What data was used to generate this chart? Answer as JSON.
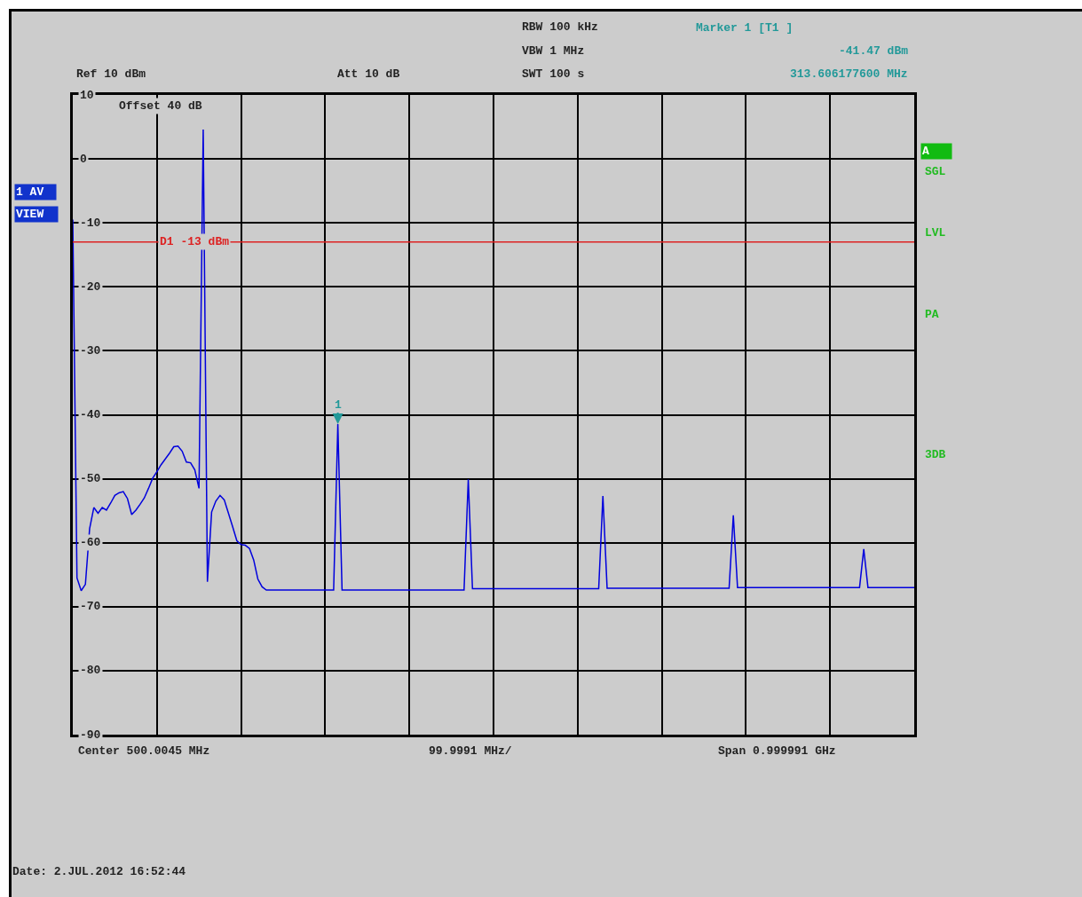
{
  "chart_data": {
    "type": "line",
    "categories": [
      null,
      null,
      null,
      null,
      null,
      null,
      null,
      null,
      null,
      null,
      null,
      null,
      null,
      null,
      null,
      null,
      null,
      null,
      null,
      null,
      null,
      null,
      null,
      null,
      null,
      null,
      null,
      null,
      null,
      null,
      null,
      null,
      null,
      null,
      null,
      null,
      null,
      null,
      null,
      null,
      null,
      null,
      null,
      null,
      null,
      null,
      null,
      null,
      null,
      null,
      null,
      null,
      null,
      null,
      null,
      null,
      null,
      null,
      null,
      null,
      null,
      null,
      null,
      null,
      null,
      null,
      null,
      null,
      null,
      null,
      null,
      null,
      null,
      null,
      null,
      null,
      null,
      null,
      null,
      null,
      null,
      null,
      null,
      null,
      null,
      null,
      null,
      null,
      null,
      null,
      null,
      null,
      null,
      null,
      null,
      null,
      null,
      null,
      null,
      null,
      null,
      null,
      null,
      null,
      null,
      null,
      null,
      null,
      null,
      null,
      null,
      null,
      null,
      null,
      null,
      null,
      null,
      null,
      null,
      null,
      null,
      null,
      null,
      null,
      null,
      null,
      null,
      null,
      null,
      null,
      null,
      null,
      null,
      null,
      null,
      null,
      null,
      null,
      null,
      null,
      null,
      null,
      null,
      null,
      null,
      null,
      null,
      null,
      null,
      null,
      null,
      null,
      null,
      null,
      null,
      null,
      null,
      null,
      null,
      null,
      null,
      null,
      null,
      null,
      null,
      null,
      null,
      null,
      null,
      null,
      null,
      null,
      null,
      null,
      null,
      null,
      null,
      null,
      null,
      null,
      null,
      null,
      null,
      null,
      null,
      null,
      null,
      null,
      null,
      null,
      null,
      null,
      null,
      null,
      null,
      null,
      null,
      null,
      null,
      null,
      null
    ],
    "series": [
      {
        "color": "#0000dd",
        "values": [
          -9.5,
          -65.5,
          -67.5,
          -66.5,
          -57.8,
          -54.5,
          -55.4,
          -54.5,
          -54.9,
          -53.8,
          -52.6,
          -52.2,
          -52,
          -53.1,
          -55.6,
          -54.9,
          -54,
          -53,
          -51.5,
          -49.9,
          -48.9,
          -47.8,
          -46.9,
          -46,
          -45,
          -44.9,
          -45.7,
          -47.4,
          -47.5,
          -48.6,
          -51.5,
          4.6,
          -66.1,
          -55.2,
          -53.5,
          -52.6,
          -53.3,
          -55.4,
          -57.5,
          -59.7,
          -60.3,
          -60.4,
          -60.9,
          -62.7,
          -65.7,
          -66.9,
          -67.4,
          -67.4,
          -67.4,
          -67.4,
          -67.4,
          -67.4,
          -67.4,
          -67.4,
          -67.4,
          -67.4,
          -67.4,
          -67.4,
          -67.4,
          -67.4,
          -67.4,
          -67.4,
          -67.4,
          -41.47,
          -67.4,
          -67.4,
          -67.4,
          -67.4,
          -67.4,
          -67.4,
          -67.4,
          -67.4,
          -67.4,
          -67.4,
          -67.4,
          -67.4,
          -67.4,
          -67.4,
          -67.4,
          -67.4,
          -67.4,
          -67.4,
          -67.4,
          -67.4,
          -67.4,
          -67.4,
          -67.4,
          -67.4,
          -67.4,
          -67.4,
          -67.4,
          -67.4,
          -67.4,
          -67.4,
          -50.1,
          -67.2,
          -67.2,
          -67.2,
          -67.2,
          -67.2,
          -67.2,
          -67.2,
          -67.2,
          -67.2,
          -67.2,
          -67.2,
          -67.2,
          -67.2,
          -67.2,
          -67.2,
          -67.2,
          -67.2,
          -67.2,
          -67.2,
          -67.2,
          -67.2,
          -67.2,
          -67.2,
          -67.2,
          -67.2,
          -67.2,
          -67.2,
          -67.2,
          -67.2,
          -67.2,
          -67.2,
          -52.7,
          -67.1,
          -67.1,
          -67.1,
          -67.1,
          -67.1,
          -67.1,
          -67.1,
          -67.1,
          -67.1,
          -67.1,
          -67.1,
          -67.1,
          -67.1,
          -67.1,
          -67.1,
          -67.1,
          -67.1,
          -67.1,
          -67.1,
          -67.1,
          -67.1,
          -67.1,
          -67.1,
          -67.1,
          -67.1,
          -67.1,
          -67.1,
          -67.1,
          -67.1,
          -67.1,
          -55.7,
          -67,
          -67,
          -67,
          -67,
          -67,
          -67,
          -67,
          -67,
          -67,
          -67,
          -67,
          -67,
          -67,
          -67,
          -67,
          -67,
          -67,
          -67,
          -67,
          -67,
          -67,
          -67,
          -67,
          -67,
          -67,
          -67,
          -67,
          -67,
          -67,
          -67,
          -61,
          -67,
          -67,
          -67,
          -67,
          -67,
          -67,
          -67,
          -67,
          -67,
          -67,
          -67,
          -67
        ]
      }
    ],
    "ylim": [
      -90,
      10
    ],
    "yticks": [
      -90,
      -80,
      -70,
      -60,
      -50,
      -40,
      -30,
      -20,
      -10,
      0,
      10
    ],
    "tick_labels": "y",
    "grid": true,
    "line_style": "solid",
    "ref_lines": [
      {
        "axis": "y",
        "value": -13,
        "label": "D1 -13 dBm",
        "color": "#dd2222"
      }
    ],
    "annotations": [
      "RBW 100 kHz",
      "VBW 1 MHz",
      "SWT 100 s",
      "Marker 1 [T1 ]",
      "-41.47 dBm",
      "313.606177600 MHz",
      "Ref 10 dBm",
      "Att 10 dB",
      "Offset 40 dB",
      "1 AV",
      "VIEW",
      "A",
      "SGL",
      "LVL",
      "PA",
      "3DB",
      "Center 500.0045 MHz",
      "99.9991 MHz/",
      "Span 0.999991 GHz",
      "Date: 2.JUL.2012 16:52:44",
      {
        "text": "1",
        "y": -41.47
      }
    ]
  }
}
